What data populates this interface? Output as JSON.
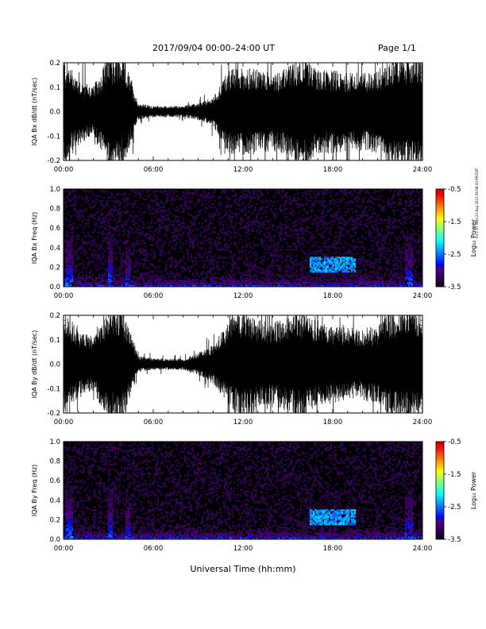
{
  "header": {
    "date_range": "2017/09/04   00:00–24:00 UT",
    "page": "Page 1/1"
  },
  "side_note": "mt-c-47 Wed 23 Aug 2023 06:08:43 PM EDT",
  "xaxis": {
    "label": "Universal Time (hh:mm)",
    "ticks": [
      "00:00",
      "06:00",
      "12:00",
      "18:00",
      "24:00"
    ]
  },
  "colorbar": {
    "label": "Log₁₀ Power",
    "ticks": [
      "-0.5",
      "-1.5",
      "-2.5",
      "-3.5"
    ]
  },
  "chart_data": [
    {
      "type": "line",
      "title": "",
      "xlabel": "",
      "ylabel": "IQA Bx dB/dt (nT/sec)",
      "xlim": [
        0,
        24
      ],
      "ylim": [
        -0.2,
        0.2
      ],
      "yticks": [
        "0.2",
        "0.1",
        "0.0",
        "-0.1",
        "-0.2"
      ],
      "series": [
        {
          "x_hours": [
            0,
            1,
            2,
            3,
            4,
            5,
            6,
            7,
            8,
            9,
            10,
            11,
            12,
            13,
            14,
            15,
            16,
            17,
            18,
            19,
            20,
            21,
            22,
            23,
            24
          ],
          "amplitude": [
            0.2,
            0.12,
            0.09,
            0.2,
            0.2,
            0.03,
            0.02,
            0.02,
            0.02,
            0.03,
            0.05,
            0.15,
            0.16,
            0.15,
            0.14,
            0.16,
            0.2,
            0.15,
            0.15,
            0.14,
            0.14,
            0.15,
            0.2,
            0.2,
            0.2
          ]
        }
      ]
    },
    {
      "type": "heatmap",
      "title": "",
      "xlabel": "",
      "ylabel": "IQA Bx Freq (Hz)",
      "xlim": [
        0,
        24
      ],
      "ylim": [
        0.0,
        1.0
      ],
      "yticks": [
        "1.0",
        "0.8",
        "0.6",
        "0.4",
        "0.2",
        "0.0"
      ],
      "zlim": [
        -3.5,
        -0.5
      ],
      "features": [
        {
          "hours": [
            0.1,
            0.6
          ],
          "freq": [
            0.0,
            1.0
          ],
          "log_power": -2.5
        },
        {
          "hours": [
            3.0,
            3.3
          ],
          "freq": [
            0.0,
            1.0
          ],
          "log_power": -2.5
        },
        {
          "hours": [
            4.1,
            4.5
          ],
          "freq": [
            0.0,
            0.9
          ],
          "log_power": -2.7
        },
        {
          "hours": [
            16.5,
            19.5
          ],
          "freq": [
            0.15,
            0.3
          ],
          "log_power": -2.4
        },
        {
          "hours": [
            22.8,
            23.4
          ],
          "freq": [
            0.0,
            1.0
          ],
          "log_power": -2.6
        }
      ]
    },
    {
      "type": "line",
      "title": "",
      "xlabel": "",
      "ylabel": "IQA By dB/dt (nT/sec)",
      "xlim": [
        0,
        24
      ],
      "ylim": [
        -0.2,
        0.2
      ],
      "yticks": [
        "0.2",
        "0.1",
        "0.0",
        "-0.1",
        "-0.2"
      ],
      "series": [
        {
          "x_hours": [
            0,
            1,
            2,
            3,
            4,
            5,
            6,
            7,
            8,
            9,
            10,
            11,
            12,
            13,
            14,
            15,
            16,
            17,
            18,
            19,
            20,
            21,
            22,
            23,
            24
          ],
          "amplitude": [
            0.2,
            0.12,
            0.1,
            0.2,
            0.2,
            0.03,
            0.02,
            0.02,
            0.02,
            0.04,
            0.07,
            0.15,
            0.2,
            0.16,
            0.15,
            0.17,
            0.2,
            0.15,
            0.14,
            0.13,
            0.13,
            0.14,
            0.2,
            0.2,
            0.2
          ]
        }
      ]
    },
    {
      "type": "heatmap",
      "title": "",
      "xlabel": "Universal Time (hh:mm)",
      "ylabel": "IQA By Freq (Hz)",
      "xlim": [
        0,
        24
      ],
      "ylim": [
        0.0,
        1.0
      ],
      "yticks": [
        "1.0",
        "0.8",
        "0.6",
        "0.4",
        "0.2",
        "0.0"
      ],
      "zlim": [
        -3.5,
        -0.5
      ],
      "features": [
        {
          "hours": [
            0.1,
            0.6
          ],
          "freq": [
            0.0,
            1.0
          ],
          "log_power": -2.5
        },
        {
          "hours": [
            3.0,
            3.3
          ],
          "freq": [
            0.0,
            1.0
          ],
          "log_power": -2.5
        },
        {
          "hours": [
            4.1,
            4.5
          ],
          "freq": [
            0.0,
            0.9
          ],
          "log_power": -2.7
        },
        {
          "hours": [
            16.5,
            19.5
          ],
          "freq": [
            0.15,
            0.3
          ],
          "log_power": -2.4
        },
        {
          "hours": [
            22.8,
            23.4
          ],
          "freq": [
            0.0,
            1.0
          ],
          "log_power": -2.6
        }
      ]
    }
  ]
}
